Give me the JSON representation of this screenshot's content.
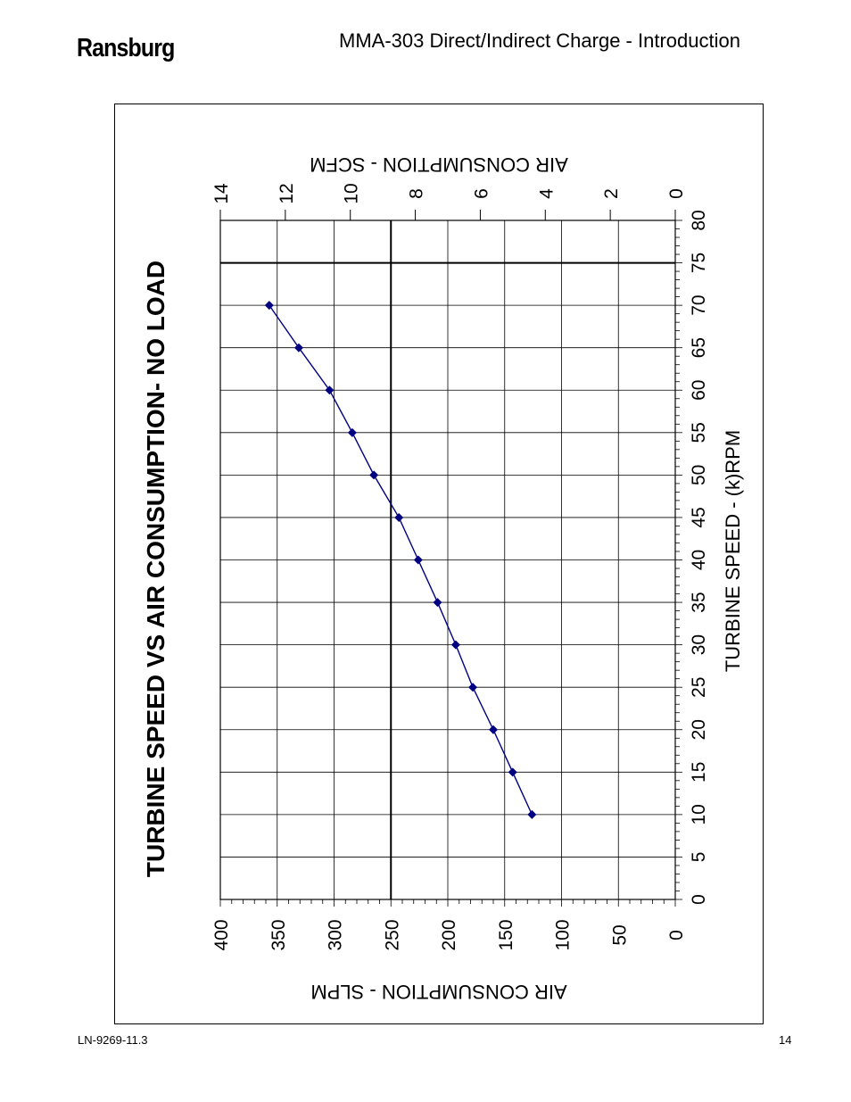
{
  "header": {
    "brand": "Ransburg",
    "title": "MMA-303 Direct/Indirect Charge - Introduction"
  },
  "footer": {
    "doc_number": "LN-9269-11.3",
    "page": "14"
  },
  "chart_data": {
    "type": "line",
    "title": "TURBINE SPEED VS AIR CONSUMPTION- NO LOAD",
    "xlabel": "TURBINE SPEED -  (k)RPM",
    "ylabel": "AIR CONSUMPTION - SLPM",
    "y2label": "AIR CONSUMPTION - SCFM",
    "xlim": [
      0,
      80
    ],
    "ylim": [
      0,
      400
    ],
    "y2lim": [
      0,
      14
    ],
    "x_ticks": [
      "0",
      "5",
      "10",
      "15",
      "20",
      "25",
      "30",
      "35",
      "40",
      "45",
      "50",
      "55",
      "60",
      "65",
      "70",
      "75",
      "80"
    ],
    "y_ticks": [
      "0",
      "50",
      "100",
      "150",
      "200",
      "250",
      "300",
      "350",
      "400"
    ],
    "y2_ticks": [
      "0",
      "2",
      "4",
      "6",
      "8",
      "10",
      "12",
      "14"
    ],
    "x_ticks_values": [
      0,
      5,
      10,
      15,
      20,
      25,
      30,
      35,
      40,
      45,
      50,
      55,
      60,
      65,
      70,
      75,
      80
    ],
    "y_ticks_values": [
      0,
      50,
      100,
      150,
      200,
      250,
      300,
      350,
      400
    ],
    "y2_ticks_values": [
      0,
      2,
      4,
      6,
      8,
      10,
      12,
      14
    ],
    "grid": true,
    "orientation": "rotated-90-counterclockwise",
    "reference_lines": {
      "x": 75,
      "y": 250
    },
    "series": [
      {
        "color": "#000080",
        "x": [
          10,
          15,
          20,
          25,
          30,
          35,
          40,
          45,
          50,
          55,
          60,
          65,
          70
        ],
        "y": [
          126,
          143,
          160,
          178,
          193,
          209,
          226,
          243,
          265,
          284,
          304,
          331,
          357
        ]
      }
    ]
  }
}
